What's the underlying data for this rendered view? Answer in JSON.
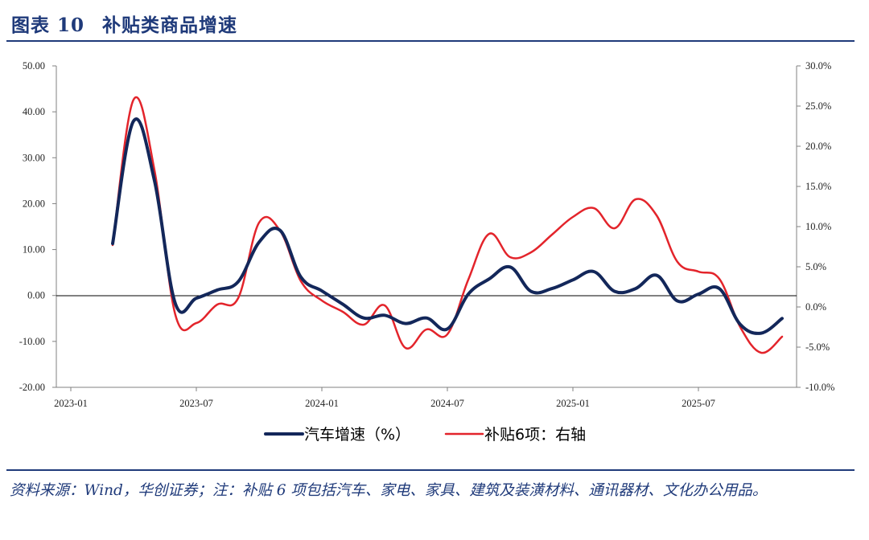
{
  "header": {
    "figure_label": "图表",
    "figure_number": "10",
    "title": "补贴类商品增速"
  },
  "source_note": "资料来源：Wind，华创证券；注：补贴 6 项包括汽车、家电、家具、建筑及装潢材料、通讯器材、文化办公用品。",
  "colors": {
    "accent": "#1f3a7a",
    "series_auto": "#13275a",
    "series_subsidy": "#e3242b",
    "axis": "#808080"
  },
  "chart_data": {
    "type": "line",
    "title": "补贴类商品增速",
    "x_tick_labels": [
      "2023-01",
      "2023-07",
      "2024-01",
      "2024-07",
      "2025-01",
      "2025-07"
    ],
    "x_tick_months": [
      0,
      6,
      12,
      18,
      24,
      30
    ],
    "x_range_months": [
      0,
      35
    ],
    "left_axis": {
      "range": [
        -20,
        50
      ],
      "ticks": [
        50,
        40,
        30,
        20,
        10,
        0,
        -10,
        -20
      ],
      "tick_labels": [
        "50.00",
        "40.00",
        "30.00",
        "20.00",
        "10.00",
        "0.00",
        "-10.00",
        "-20.00"
      ]
    },
    "right_axis": {
      "range": [
        -10,
        30
      ],
      "ticks": [
        30,
        25,
        20,
        15,
        10,
        5,
        0,
        -5,
        -10
      ],
      "tick_labels": [
        "30.0%",
        "25.0%",
        "20.0%",
        "15.0%",
        "10.0%",
        "5.0%",
        "0.0%",
        "-5.0%",
        "-10.0%"
      ]
    },
    "series": [
      {
        "name": "汽车增速（%）",
        "axis": "left",
        "x": [
          2,
          3,
          4,
          5,
          6,
          7,
          8,
          9,
          10,
          11,
          12,
          13,
          14,
          15,
          16,
          17,
          18,
          19,
          20,
          21,
          22,
          23,
          24,
          25,
          26,
          27,
          28,
          29,
          30,
          31,
          32,
          33,
          34
        ],
        "values": [
          11.3,
          38.0,
          25.0,
          -1.8,
          -0.6,
          1.2,
          3.0,
          11.6,
          14.2,
          4.0,
          1.0,
          -1.9,
          -4.9,
          -4.3,
          -6.1,
          -4.9,
          -7.3,
          0.3,
          3.6,
          6.2,
          0.9,
          1.5,
          3.4,
          5.2,
          0.9,
          1.5,
          4.4,
          -1.2,
          0.3,
          1.5,
          -6.3,
          -8.2,
          -5.0
        ]
      },
      {
        "name": "补贴6项：右轴",
        "axis": "right",
        "x": [
          2,
          3,
          4,
          5,
          6,
          7,
          8,
          9,
          10,
          11,
          12,
          13,
          14,
          15,
          16,
          17,
          18,
          19,
          20,
          21,
          22,
          23,
          24,
          25,
          26,
          27,
          28,
          29,
          30,
          31,
          32,
          33,
          34
        ],
        "values": [
          7.7,
          25.8,
          17.0,
          -1.0,
          -2.0,
          0.3,
          1.1,
          10.5,
          9.5,
          3.2,
          0.8,
          -0.6,
          -2.2,
          0.2,
          -5.1,
          -2.8,
          -3.4,
          3.4,
          9.1,
          6.2,
          6.8,
          9.0,
          11.2,
          12.3,
          9.8,
          13.4,
          11.4,
          5.6,
          4.4,
          3.5,
          -2.5,
          -5.7,
          -3.7
        ]
      }
    ],
    "legend": [
      {
        "label": "汽车增速（%）",
        "color": "#13275a"
      },
      {
        "label": "补贴6项：右轴",
        "color": "#e3242b"
      }
    ],
    "legend_position": "bottom-center",
    "grid": false
  }
}
